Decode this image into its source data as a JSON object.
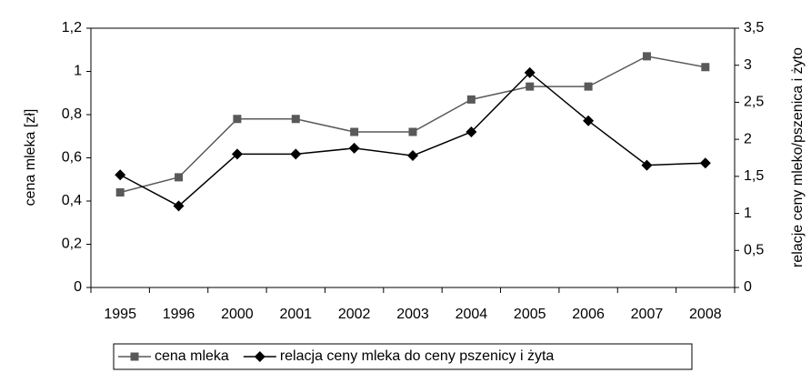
{
  "chart_data": {
    "type": "line",
    "categories": [
      "1995",
      "1996",
      "2000",
      "2001",
      "2002",
      "2003",
      "2004",
      "2005",
      "2006",
      "2007",
      "2008"
    ],
    "ylabel": "cena mleka [zł]",
    "y2label": "relacje ceny mleko/pszenica i żyto",
    "ylim": [
      0,
      1.2
    ],
    "yticks": [
      0,
      {
        "value": 0.2,
        "label": "0,2"
      },
      {
        "value": 0.4,
        "label": "0,4"
      },
      {
        "value": 0.6,
        "label": "0,6"
      },
      {
        "value": 0.8,
        "label": "0,8"
      },
      1,
      {
        "value": 1.2,
        "label": "1,2"
      }
    ],
    "y2lim": [
      0,
      3.5
    ],
    "y2ticks": [
      0,
      {
        "value": 0.5,
        "label": "0,5"
      },
      1,
      {
        "value": 1.5,
        "label": "1,5"
      },
      2,
      {
        "value": 2.5,
        "label": "2,5"
      },
      3,
      {
        "value": 3.5,
        "label": "3,5"
      }
    ],
    "grid": false,
    "series": [
      {
        "name": "cena mleka",
        "color": "#595959",
        "marker": "square",
        "values": [
          0.44,
          0.51,
          0.78,
          0.78,
          0.72,
          0.72,
          0.87,
          0.93,
          0.93,
          1.07,
          1.02
        ]
      },
      {
        "name": "relacja ceny mleka do ceny pszenicy i żyta",
        "color": "#000000",
        "marker": "diamond",
        "axis": "y2",
        "values": [
          1.52,
          1.1,
          1.8,
          1.8,
          1.88,
          1.78,
          2.1,
          2.9,
          2.25,
          1.65,
          1.68
        ]
      }
    ]
  }
}
